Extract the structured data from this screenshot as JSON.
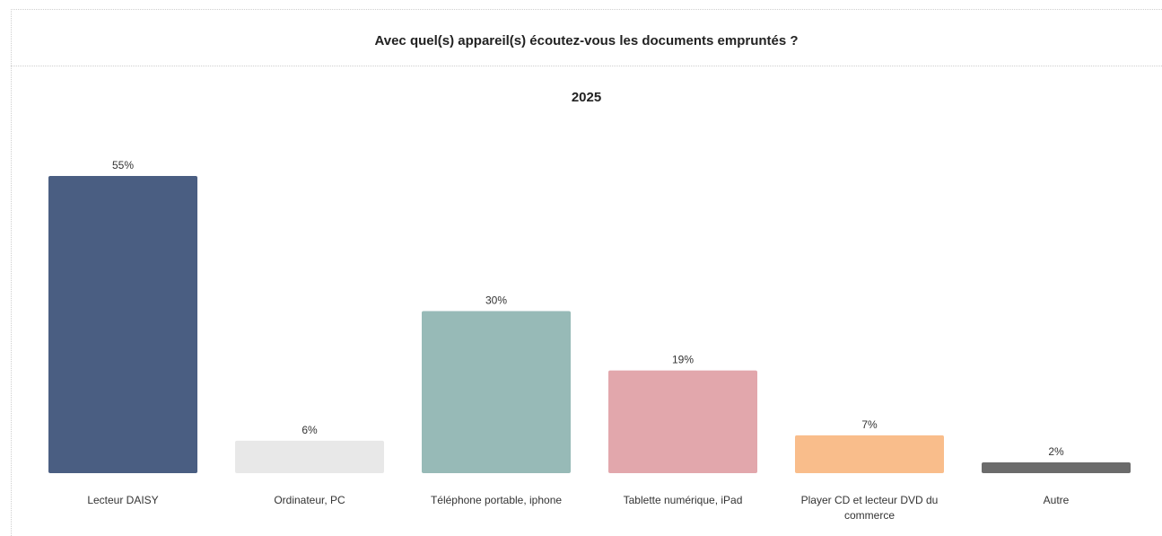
{
  "chart_data": {
    "type": "bar",
    "title": "Avec quel(s) appareil(s) écoutez-vous les documents empruntés ?",
    "subtitle": "2025",
    "categories": [
      "Lecteur DAISY",
      "Ordinateur, PC",
      "Téléphone portable, iphone",
      "Tablette numérique, iPad",
      "Player CD et lecteur DVD du commerce",
      "Autre"
    ],
    "values": [
      55,
      6,
      30,
      19,
      7,
      2
    ],
    "value_labels": [
      "55%",
      "6%",
      "30%",
      "19%",
      "7%",
      "2%"
    ],
    "colors": [
      "#4a5e82",
      "#e8e8e8",
      "#97bab7",
      "#e2a7ac",
      "#f9bd8b",
      "#6b6b6b"
    ]
  }
}
